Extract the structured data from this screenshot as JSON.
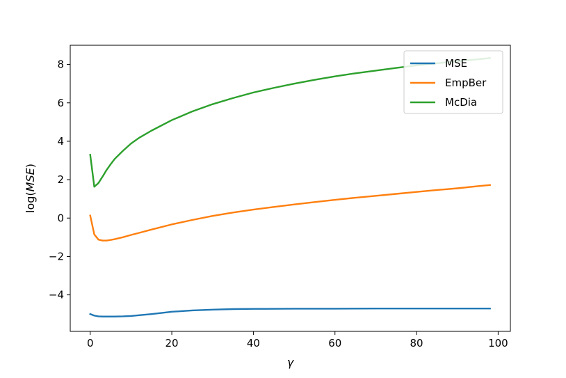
{
  "chart_data": {
    "type": "line",
    "title": "",
    "xlabel": "γ",
    "ylabel_prefix": "log(",
    "ylabel_italic": "MSE",
    "ylabel_suffix": ")",
    "xlim": [
      -4.9,
      103
    ],
    "ylim": [
      -5.9,
      9.0
    ],
    "xticks": [
      0,
      20,
      40,
      60,
      80,
      100
    ],
    "yticks": [
      -4,
      -2,
      0,
      2,
      4,
      6,
      8
    ],
    "xtick_labels": [
      "0",
      "20",
      "40",
      "60",
      "80",
      "100"
    ],
    "ytick_labels": [
      "−4",
      "−2",
      "0",
      "2",
      "4",
      "6",
      "8"
    ],
    "legend": {
      "placement": "top-right"
    },
    "series": [
      {
        "name": "MSE",
        "color": "#1f77b4",
        "x": [
          0,
          1,
          2,
          3,
          4,
          5,
          6,
          8,
          10,
          12,
          15,
          18,
          20,
          25,
          30,
          35,
          40,
          50,
          60,
          70,
          80,
          90,
          98
        ],
        "y": [
          -5.0,
          -5.08,
          -5.12,
          -5.13,
          -5.13,
          -5.13,
          -5.13,
          -5.12,
          -5.1,
          -5.06,
          -5.0,
          -4.93,
          -4.88,
          -4.81,
          -4.77,
          -4.74,
          -4.73,
          -4.72,
          -4.72,
          -4.71,
          -4.71,
          -4.71,
          -4.71
        ]
      },
      {
        "name": "EmpBer",
        "color": "#ff7f0e",
        "x": [
          0,
          1,
          2,
          3,
          4,
          5,
          6,
          8,
          10,
          12,
          15,
          20,
          25,
          30,
          35,
          40,
          45,
          50,
          55,
          60,
          65,
          70,
          75,
          80,
          85,
          90,
          95,
          98
        ],
        "y": [
          0.13,
          -0.85,
          -1.12,
          -1.17,
          -1.17,
          -1.14,
          -1.1,
          -1.0,
          -0.88,
          -0.77,
          -0.6,
          -0.33,
          -0.1,
          0.11,
          0.29,
          0.44,
          0.58,
          0.71,
          0.83,
          0.95,
          1.06,
          1.16,
          1.26,
          1.36,
          1.46,
          1.55,
          1.66,
          1.72
        ]
      },
      {
        "name": "McDia",
        "color": "#2ca02c",
        "x": [
          0,
          1,
          2,
          3,
          4,
          5,
          6,
          8,
          10,
          12,
          15,
          20,
          25,
          30,
          35,
          40,
          45,
          50,
          55,
          60,
          65,
          70,
          75,
          80,
          85,
          90,
          95,
          98
        ],
        "y": [
          3.3,
          1.63,
          1.82,
          2.15,
          2.5,
          2.8,
          3.08,
          3.5,
          3.88,
          4.18,
          4.55,
          5.1,
          5.55,
          5.93,
          6.25,
          6.54,
          6.78,
          7.0,
          7.2,
          7.38,
          7.54,
          7.68,
          7.82,
          7.95,
          8.06,
          8.17,
          8.27,
          8.33
        ]
      }
    ]
  }
}
